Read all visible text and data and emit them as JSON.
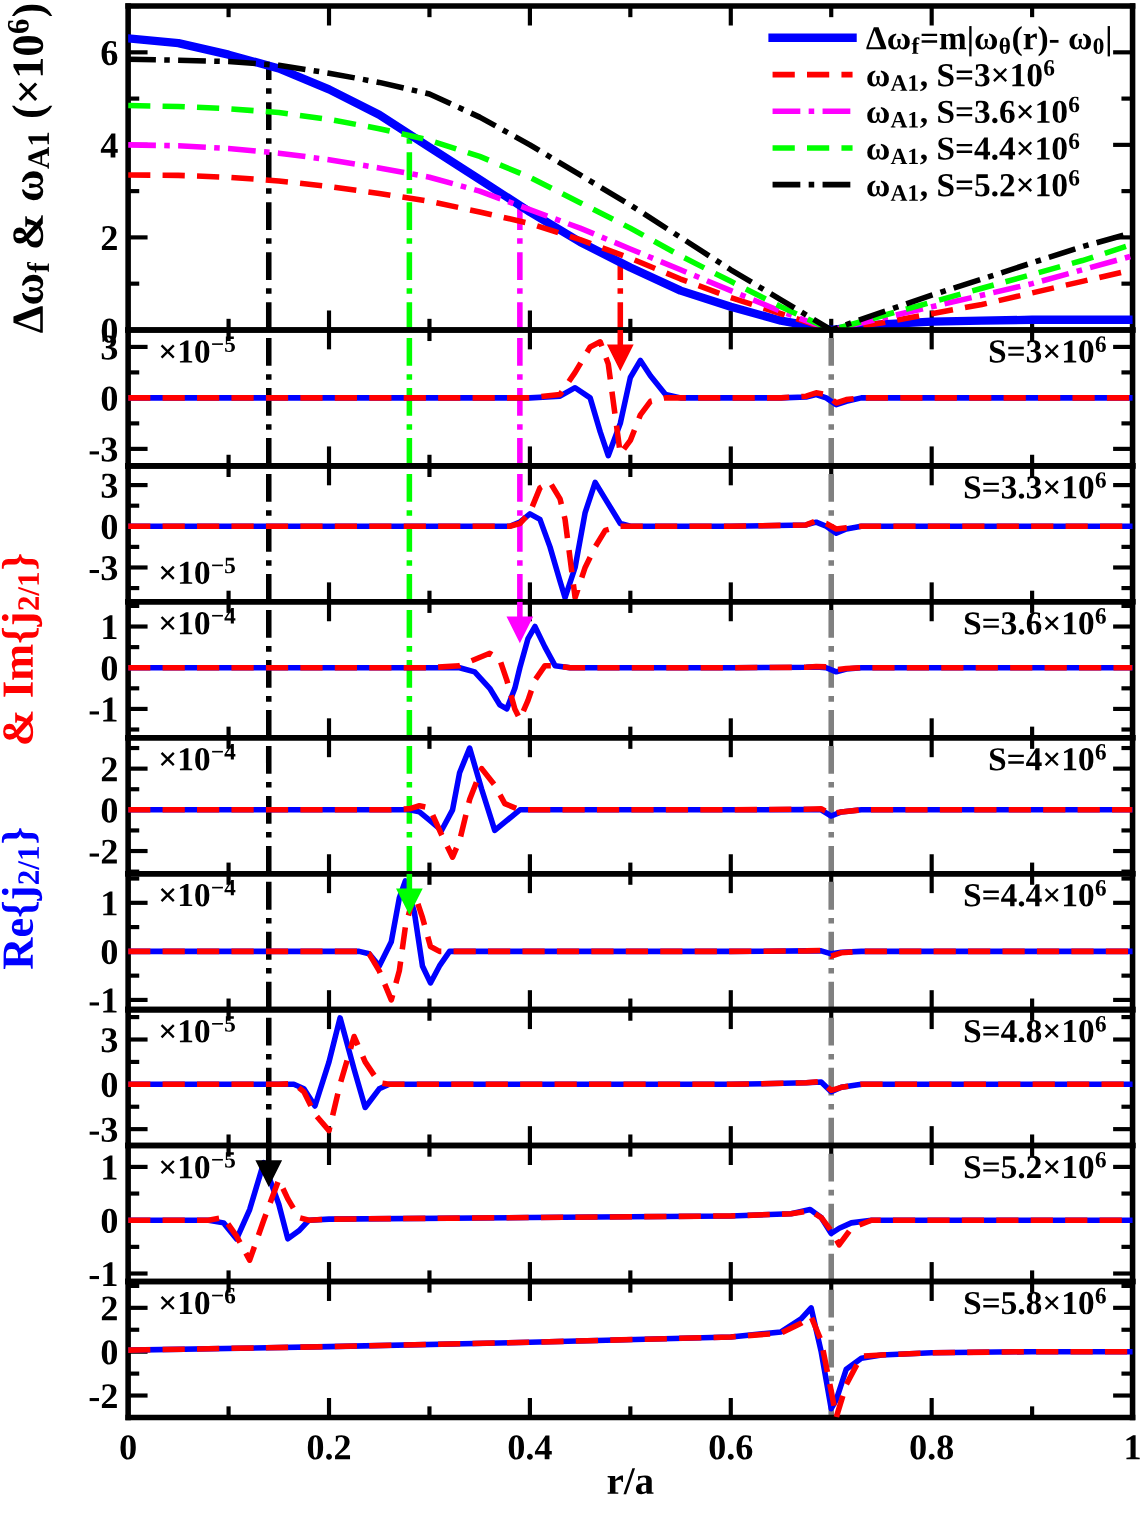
{
  "chart_data": [
    {
      "type": "line",
      "ylabel": "Δω$_{f}$ & ω$_{A1}$ (×10$^{6}$)",
      "x": [
        0,
        0.05,
        0.1,
        0.15,
        0.2,
        0.25,
        0.3,
        0.35,
        0.4,
        0.45,
        0.5,
        0.55,
        0.6,
        0.65,
        0.7,
        0.75,
        0.8,
        0.85,
        0.9,
        0.95,
        1.0
      ],
      "xlim": [
        0,
        1
      ],
      "xticks": [
        0,
        0.2,
        0.4,
        0.6,
        0.8,
        1
      ],
      "ylim": [
        0,
        7
      ],
      "yticks": [
        0,
        2,
        4,
        6
      ],
      "tick_labels": "y",
      "legend": "top right",
      "series": [
        {
          "name": "Δω$_{f}$=m|ω$_{θ}$(r)- ω$_{0}$|",
          "color": "#0000ff",
          "line_style": "solid",
          "values": [
            6.3,
            6.2,
            5.95,
            5.65,
            5.2,
            4.65,
            3.95,
            3.25,
            2.55,
            1.9,
            1.35,
            0.85,
            0.5,
            0.2,
            0.0,
            0.12,
            0.18,
            0.2,
            0.22,
            0.22,
            0.22
          ]
        },
        {
          "name": "ω$_{A1}$, S=3×10$^{6}$",
          "color": "#ff0000",
          "line_style": "dashed",
          "values": [
            3.35,
            3.34,
            3.3,
            3.22,
            3.1,
            2.95,
            2.78,
            2.55,
            2.3,
            1.95,
            1.55,
            1.1,
            0.7,
            0.35,
            0.0,
            0.15,
            0.35,
            0.55,
            0.8,
            1.05,
            1.3
          ]
        },
        {
          "name": "ω$_{A1}$, S=3.6×10$^{6}$",
          "color": "#ff00ff",
          "line_style": "dashdot",
          "values": [
            4.0,
            3.98,
            3.92,
            3.82,
            3.68,
            3.5,
            3.3,
            3.0,
            2.6,
            2.2,
            1.75,
            1.3,
            0.85,
            0.4,
            0.0,
            0.25,
            0.5,
            0.75,
            1.0,
            1.3,
            1.6
          ]
        },
        {
          "name": "ω$_{A1}$, S=4.4×10$^{6}$",
          "color": "#00ff00",
          "line_style": "dashed",
          "values": [
            4.85,
            4.83,
            4.78,
            4.7,
            4.55,
            4.35,
            4.1,
            3.75,
            3.3,
            2.75,
            2.2,
            1.6,
            1.05,
            0.5,
            0.0,
            0.3,
            0.6,
            0.9,
            1.2,
            1.5,
            1.85
          ]
        },
        {
          "name": "ω$_{A1}$, S=5.2×10$^{6}$",
          "color": "#000000",
          "line_style": "dashdot",
          "values": [
            5.85,
            5.83,
            5.8,
            5.72,
            5.55,
            5.35,
            5.1,
            4.6,
            4.0,
            3.35,
            2.7,
            2.0,
            1.3,
            0.65,
            0.0,
            0.38,
            0.75,
            1.1,
            1.45,
            1.8,
            2.1
          ]
        }
      ],
      "ref_lines": [
        {
          "axis": "x",
          "value": 0.14,
          "color": "#000000",
          "line_style": "dashdot"
        },
        {
          "axis": "x",
          "value": 0.28,
          "color": "#00ff00",
          "line_style": "dashdot"
        },
        {
          "axis": "x",
          "value": 0.39,
          "color": "#ff00ff",
          "line_style": "dashdot"
        },
        {
          "axis": "x",
          "value": 0.49,
          "color": "#ff0000",
          "line_style": "dashdot"
        }
      ]
    },
    {
      "type": "line",
      "annotations": [
        "×10$^{−5}$",
        "S=3×10$^{6}$"
      ],
      "x": [
        0,
        0.1,
        0.2,
        0.3,
        0.4,
        0.43,
        0.445,
        0.46,
        0.47,
        0.478,
        0.49,
        0.5,
        0.51,
        0.52,
        0.535,
        0.55,
        0.6,
        0.65,
        0.675,
        0.685,
        0.695,
        0.705,
        0.715,
        0.73,
        0.8,
        0.9,
        1.0
      ],
      "xlim": [
        0,
        1
      ],
      "xticks": [
        0,
        0.2,
        0.4,
        0.6,
        0.8,
        1
      ],
      "ylim": [
        -4,
        4
      ],
      "yticks": [
        -3,
        0,
        3
      ],
      "tick_labels": "y",
      "series": [
        {
          "color": "#0000ff",
          "line_style": "solid",
          "values": [
            0,
            0,
            0,
            0,
            0,
            0.1,
            0.6,
            0.0,
            -2.0,
            -3.4,
            -1.5,
            1.2,
            2.2,
            1.3,
            0.2,
            0,
            0,
            0,
            0.05,
            0.2,
            0,
            -0.4,
            -0.2,
            0,
            0,
            0,
            0
          ]
        },
        {
          "color": "#ff0000",
          "line_style": "dashed",
          "values": [
            0,
            0,
            0,
            0,
            0,
            0.2,
            1.5,
            3.0,
            3.3,
            2.0,
            -3.3,
            -2.5,
            -1.0,
            -0.2,
            0,
            0,
            0,
            0,
            0.1,
            0.3,
            0.2,
            -0.3,
            -0.1,
            0,
            0,
            0,
            0
          ]
        }
      ],
      "ref_lines": [
        {
          "axis": "x",
          "value": 0.14,
          "color": "#000000",
          "line_style": "dashdot"
        },
        {
          "axis": "x",
          "value": 0.28,
          "color": "#00ff00",
          "line_style": "dashdot"
        },
        {
          "axis": "x",
          "value": 0.39,
          "color": "#ff00ff",
          "line_style": "dashdot"
        },
        {
          "axis": "x",
          "value": 0.7,
          "color": "#808080",
          "line_style": "dashdot"
        }
      ]
    },
    {
      "type": "line",
      "annotations": [
        "×10$^{−5}$",
        "S=3.3×10$^{6}$"
      ],
      "x": [
        0,
        0.1,
        0.2,
        0.3,
        0.38,
        0.39,
        0.4,
        0.41,
        0.42,
        0.43,
        0.435,
        0.445,
        0.455,
        0.465,
        0.475,
        0.49,
        0.5,
        0.6,
        0.675,
        0.685,
        0.695,
        0.705,
        0.715,
        0.73,
        0.8,
        0.9,
        1.0
      ],
      "xlim": [
        0,
        1
      ],
      "xticks": [
        0,
        0.2,
        0.4,
        0.6,
        0.8,
        1
      ],
      "ylim": [
        -5.5,
        4.4
      ],
      "yticks": [
        -3,
        0,
        3
      ],
      "tick_labels": "y",
      "series": [
        {
          "color": "#0000ff",
          "line_style": "solid",
          "values": [
            0,
            0,
            0,
            0,
            0,
            0.3,
            0.9,
            0.5,
            -1.5,
            -4.0,
            -5.2,
            -3.0,
            1.0,
            3.2,
            2.0,
            0.2,
            0,
            0,
            0.1,
            0.3,
            0,
            -0.5,
            -0.2,
            0,
            0,
            0,
            0
          ]
        },
        {
          "color": "#ff0000",
          "line_style": "dashed",
          "values": [
            0,
            0,
            0,
            0,
            0,
            0.2,
            1.0,
            2.8,
            3.2,
            2.0,
            0.5,
            -5.2,
            -3.0,
            -1.5,
            -0.3,
            0,
            0,
            0,
            0.1,
            0.4,
            0.2,
            -0.2,
            -0.1,
            0,
            0,
            0,
            0
          ]
        }
      ],
      "ref_lines": [
        {
          "axis": "x",
          "value": 0.14,
          "color": "#000000",
          "line_style": "dashdot"
        },
        {
          "axis": "x",
          "value": 0.28,
          "color": "#00ff00",
          "line_style": "dashdot"
        },
        {
          "axis": "x",
          "value": 0.39,
          "color": "#ff00ff",
          "line_style": "dashdot"
        },
        {
          "axis": "x",
          "value": 0.7,
          "color": "#808080",
          "line_style": "dashdot"
        }
      ]
    },
    {
      "type": "line",
      "annotations": [
        "×10$^{−4}$",
        "S=3.6×10$^{6}$"
      ],
      "x": [
        0,
        0.1,
        0.2,
        0.3,
        0.33,
        0.345,
        0.36,
        0.37,
        0.377,
        0.385,
        0.39,
        0.398,
        0.405,
        0.415,
        0.425,
        0.44,
        0.5,
        0.6,
        0.675,
        0.685,
        0.695,
        0.705,
        0.715,
        0.73,
        0.8,
        0.9,
        1.0
      ],
      "xlim": [
        0,
        1
      ],
      "xticks": [
        0,
        0.2,
        0.4,
        0.6,
        0.8,
        1
      ],
      "ylim": [
        -1.7,
        1.6
      ],
      "yticks": [
        -1,
        0,
        1
      ],
      "tick_labels": "y",
      "series": [
        {
          "color": "#0000ff",
          "line_style": "solid",
          "values": [
            0,
            0,
            0,
            0,
            0,
            -0.1,
            -0.5,
            -0.9,
            -1.0,
            -0.5,
            0.0,
            0.7,
            1.0,
            0.5,
            0.05,
            0,
            0,
            0,
            0.01,
            0.02,
            0,
            -0.1,
            -0.03,
            0,
            0,
            0,
            0
          ]
        },
        {
          "color": "#ff0000",
          "line_style": "dashed",
          "values": [
            0,
            0,
            0,
            0,
            0.05,
            0.2,
            0.35,
            0.2,
            -0.3,
            -1.0,
            -1.25,
            -0.8,
            -0.3,
            0.05,
            0.05,
            0,
            0,
            0,
            0.01,
            0.03,
            0.02,
            -0.05,
            -0.02,
            0,
            0,
            0,
            0
          ]
        }
      ],
      "ref_lines": [
        {
          "axis": "x",
          "value": 0.14,
          "color": "#000000",
          "line_style": "dashdot"
        },
        {
          "axis": "x",
          "value": 0.28,
          "color": "#00ff00",
          "line_style": "dashdot"
        },
        {
          "axis": "x",
          "value": 0.7,
          "color": "#808080",
          "line_style": "dashdot"
        }
      ]
    },
    {
      "type": "line",
      "ylabel": "& Im{j$_{2/1}$}",
      "annotations": [
        "×10$^{−4}$",
        "S=4×10$^{6}$"
      ],
      "x": [
        0,
        0.1,
        0.2,
        0.26,
        0.28,
        0.29,
        0.3,
        0.312,
        0.323,
        0.33,
        0.34,
        0.352,
        0.365,
        0.375,
        0.39,
        0.4,
        0.5,
        0.6,
        0.675,
        0.69,
        0.7,
        0.71,
        0.73,
        0.8,
        0.9,
        1.0
      ],
      "xlim": [
        0,
        1
      ],
      "xticks": [
        0,
        0.2,
        0.4,
        0.6,
        0.8,
        1
      ],
      "ylim": [
        -3.1,
        3.5
      ],
      "yticks": [
        -2,
        0,
        2
      ],
      "tick_labels": "y",
      "series": [
        {
          "color": "#0000ff",
          "line_style": "solid",
          "values": [
            0,
            0,
            0,
            0,
            0,
            -0.1,
            -0.5,
            -1.0,
            0.0,
            1.8,
            3.0,
            1.0,
            -1.0,
            -0.6,
            0,
            0,
            0,
            0,
            0.02,
            0,
            -0.3,
            -0.1,
            0,
            0,
            0,
            0
          ]
        },
        {
          "color": "#ff0000",
          "line_style": "dashed",
          "values": [
            0,
            0,
            0,
            0,
            0.05,
            0.2,
            0.1,
            -1.2,
            -2.3,
            -1.5,
            0.5,
            2.0,
            1.2,
            0.3,
            0,
            0,
            0,
            0,
            0.03,
            0.05,
            -0.2,
            -0.1,
            0,
            0,
            0,
            0
          ]
        }
      ],
      "ref_lines": [
        {
          "axis": "x",
          "value": 0.14,
          "color": "#000000",
          "line_style": "dashdot"
        },
        {
          "axis": "x",
          "value": 0.28,
          "color": "#00ff00",
          "line_style": "dashdot"
        },
        {
          "axis": "x",
          "value": 0.7,
          "color": "#808080",
          "line_style": "dashdot"
        }
      ]
    },
    {
      "type": "line",
      "ylabel": "Re{j$_{2/1}$}",
      "annotations": [
        "×10$^{−4}$",
        "S=4.4×10$^{6}$"
      ],
      "x": [
        0,
        0.1,
        0.2,
        0.23,
        0.24,
        0.25,
        0.262,
        0.27,
        0.276,
        0.285,
        0.293,
        0.301,
        0.31,
        0.32,
        0.33,
        0.4,
        0.5,
        0.6,
        0.675,
        0.69,
        0.7,
        0.71,
        0.73,
        0.8,
        0.9,
        1.0
      ],
      "xlim": [
        0,
        1
      ],
      "xticks": [
        0,
        0.2,
        0.4,
        0.6,
        0.8,
        1
      ],
      "ylim": [
        -1.2,
        1.6
      ],
      "yticks": [
        -1,
        0,
        1
      ],
      "tick_labels": "y",
      "series": [
        {
          "color": "#0000ff",
          "line_style": "solid",
          "values": [
            0,
            0,
            0,
            0,
            -0.05,
            -0.3,
            0.2,
            1.1,
            1.45,
            0.8,
            -0.3,
            -0.65,
            -0.3,
            0,
            0,
            0,
            0,
            0,
            0.01,
            0.01,
            -0.05,
            -0.02,
            0,
            0,
            0,
            0
          ]
        },
        {
          "color": "#ff0000",
          "line_style": "dashed",
          "values": [
            0,
            0,
            0,
            0,
            -0.05,
            -0.4,
            -1.0,
            -0.4,
            0.5,
            1.2,
            0.7,
            0.1,
            0.0,
            0,
            0,
            0,
            0,
            0,
            0.01,
            0.02,
            -0.1,
            -0.03,
            0,
            0,
            0,
            0
          ]
        }
      ],
      "ref_lines": [
        {
          "axis": "x",
          "value": 0.14,
          "color": "#000000",
          "line_style": "dashdot"
        },
        {
          "axis": "x",
          "value": 0.7,
          "color": "#808080",
          "line_style": "dashdot"
        }
      ]
    },
    {
      "type": "line",
      "annotations": [
        "×10$^{−5}$",
        "S=4.8×10$^{6}$"
      ],
      "x": [
        0,
        0.1,
        0.15,
        0.165,
        0.175,
        0.186,
        0.2,
        0.211,
        0.225,
        0.236,
        0.25,
        0.26,
        0.3,
        0.4,
        0.5,
        0.6,
        0.675,
        0.69,
        0.7,
        0.71,
        0.73,
        0.8,
        0.9,
        1.0
      ],
      "xlim": [
        0,
        1
      ],
      "xticks": [
        0,
        0.2,
        0.4,
        0.6,
        0.8,
        1
      ],
      "ylim": [
        -4.1,
        5
      ],
      "yticks": [
        -3,
        0,
        3
      ],
      "tick_labels": "y",
      "series": [
        {
          "color": "#0000ff",
          "line_style": "solid",
          "values": [
            0,
            0,
            0,
            0,
            -0.3,
            -1.45,
            1.5,
            4.45,
            1.0,
            -1.55,
            -0.3,
            0,
            0,
            0,
            0,
            0,
            0.1,
            0.15,
            -0.5,
            -0.2,
            0,
            0,
            0,
            0
          ]
        },
        {
          "color": "#ff0000",
          "line_style": "dashed",
          "values": [
            0,
            0,
            0,
            0.05,
            -0.5,
            -2.0,
            -3.1,
            0.0,
            3.2,
            1.5,
            0.1,
            0,
            0,
            0,
            0,
            0,
            0.1,
            0.2,
            -0.4,
            -0.2,
            0,
            0,
            0,
            0
          ]
        }
      ],
      "ref_lines": [
        {
          "axis": "x",
          "value": 0.14,
          "color": "#000000",
          "line_style": "dashdot"
        },
        {
          "axis": "x",
          "value": 0.7,
          "color": "#808080",
          "line_style": "dashdot"
        }
      ]
    },
    {
      "type": "line",
      "annotations": [
        "×10$^{−5}$",
        "S=5.2×10$^{6}$"
      ],
      "x": [
        0,
        0.08,
        0.095,
        0.108,
        0.121,
        0.135,
        0.15,
        0.159,
        0.17,
        0.18,
        0.2,
        0.4,
        0.6,
        0.66,
        0.679,
        0.69,
        0.7,
        0.708,
        0.72,
        0.74,
        0.8,
        0.9,
        1.0
      ],
      "xlim": [
        0,
        1
      ],
      "xticks": [
        0,
        0.2,
        0.4,
        0.6,
        0.8,
        1
      ],
      "ylim": [
        -1.15,
        1.4
      ],
      "yticks": [
        -1,
        0,
        1
      ],
      "tick_labels": "y",
      "series": [
        {
          "color": "#0000ff",
          "line_style": "solid",
          "values": [
            0,
            0,
            -0.05,
            -0.35,
            0.2,
            1.08,
            0.3,
            -0.35,
            -0.2,
            0,
            0.02,
            0.05,
            0.08,
            0.12,
            0.2,
            0.05,
            -0.25,
            -0.15,
            -0.05,
            0,
            0,
            0,
            0
          ]
        },
        {
          "color": "#ff0000",
          "line_style": "dashed",
          "values": [
            0,
            0,
            0.05,
            -0.3,
            -0.75,
            0.0,
            0.76,
            0.4,
            0.05,
            0,
            0.02,
            0.05,
            0.08,
            0.12,
            0.18,
            0.05,
            -0.2,
            -0.46,
            -0.15,
            0,
            0,
            0,
            0
          ]
        }
      ],
      "ref_lines": [
        {
          "axis": "x",
          "value": 0.7,
          "color": "#808080",
          "line_style": "dashdot"
        }
      ]
    },
    {
      "type": "line",
      "xlabel": "r/a",
      "annotations": [
        "×10$^{−6}$",
        "S=5.8×10$^{6}$"
      ],
      "x": [
        0,
        0.2,
        0.4,
        0.6,
        0.65,
        0.67,
        0.68,
        0.69,
        0.7,
        0.705,
        0.715,
        0.73,
        0.75,
        0.8,
        0.9,
        1.0
      ],
      "xlim": [
        0,
        1
      ],
      "xticks": [
        0,
        0.2,
        0.4,
        0.6,
        0.8,
        1
      ],
      "ylim": [
        -3,
        3.2
      ],
      "yticks": [
        -2,
        0,
        2
      ],
      "series": [
        {
          "color": "#0000ff",
          "line_style": "solid",
          "values": [
            0.07,
            0.23,
            0.43,
            0.67,
            0.9,
            1.5,
            2.0,
            0.0,
            -2.6,
            -2.2,
            -0.8,
            -0.3,
            -0.15,
            -0.05,
            0,
            0
          ]
        },
        {
          "color": "#ff0000",
          "line_style": "dashed",
          "values": [
            0.07,
            0.23,
            0.43,
            0.67,
            0.85,
            1.3,
            1.6,
            0.5,
            -1.8,
            -3.0,
            -1.5,
            -0.2,
            -0.15,
            -0.05,
            0,
            0
          ]
        }
      ],
      "ref_lines": [
        {
          "axis": "x",
          "value": 0.7,
          "color": "#808080",
          "line_style": "dashdot"
        }
      ]
    }
  ]
}
